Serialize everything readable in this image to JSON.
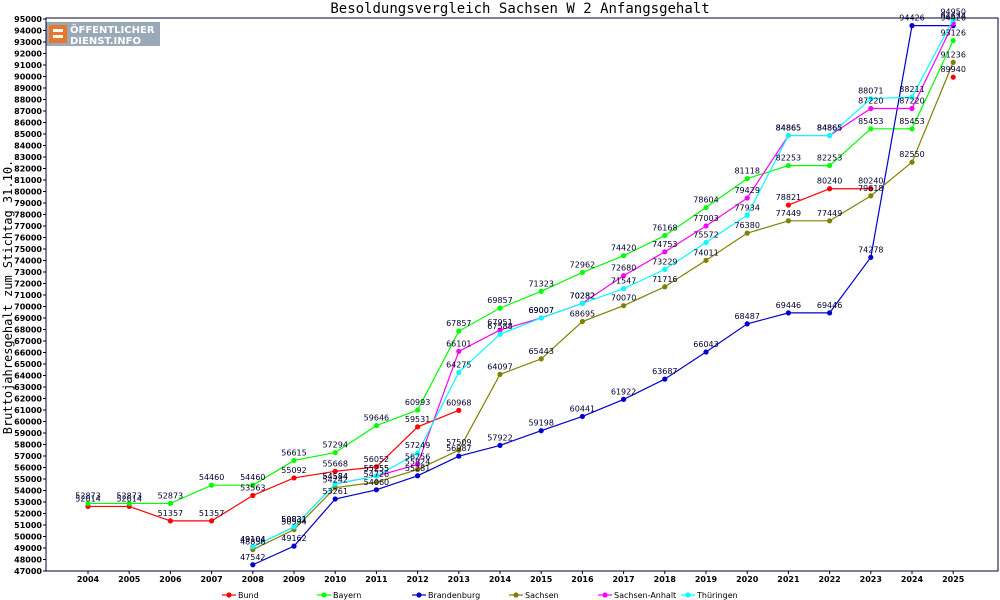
{
  "chart_data": {
    "type": "line",
    "title": "Besoldungsvergleich Sachsen W 2 Anfangsgehalt",
    "ylabel": "Bruttojahresgehalt zum Stichtag 31.10.",
    "xlabel": "",
    "x": [
      2004,
      2005,
      2006,
      2007,
      2008,
      2009,
      2010,
      2011,
      2012,
      2013,
      2014,
      2015,
      2016,
      2017,
      2018,
      2019,
      2020,
      2021,
      2022,
      2023,
      2024,
      2025
    ],
    "ylim": [
      47000,
      95000
    ],
    "ystep": 1000,
    "grid": false,
    "legend_position": "bottom",
    "series": [
      {
        "name": "Bund",
        "color": "#ff0000",
        "values": [
          52614,
          52614,
          51357,
          51357,
          53563,
          55092,
          55668,
          56052,
          59531,
          60968,
          null,
          null,
          null,
          null,
          null,
          null,
          null,
          78821,
          80240,
          80240,
          null,
          89940
        ]
      },
      {
        "name": "Bayern",
        "color": "#00ff00",
        "values": [
          52873,
          52873,
          52873,
          54460,
          54460,
          56615,
          57294,
          59646,
          60993,
          67857,
          69857,
          71323,
          72962,
          74420,
          76168,
          78604,
          81118,
          82253,
          82253,
          85453,
          85453,
          93126
        ]
      },
      {
        "name": "Brandenburg",
        "color": "#0000cc",
        "values": [
          null,
          null,
          null,
          null,
          47542,
          49162,
          53261,
          54060,
          55281,
          56987,
          57922,
          59198,
          60441,
          61922,
          63687,
          66043,
          68487,
          69446,
          69446,
          74278,
          94426,
          94426
        ]
      },
      {
        "name": "Sachsen",
        "color": "#808000",
        "values": [
          null,
          null,
          null,
          null,
          48856,
          50594,
          54242,
          54726,
          55824,
          57509,
          64097,
          65443,
          68695,
          70070,
          71716,
          74011,
          76380,
          77449,
          77449,
          79618,
          82550,
          91236
        ]
      },
      {
        "name": "Sachsen-Anhalt",
        "color": "#ff00ff",
        "values": [
          null,
          null,
          null,
          null,
          49104,
          50831,
          54584,
          55255,
          56256,
          66101,
          67951,
          69007,
          70282,
          72680,
          74753,
          77003,
          79429,
          84865,
          84865,
          87220,
          87220,
          94624
        ]
      },
      {
        "name": "Thüringen",
        "color": "#00ffff",
        "values": [
          null,
          null,
          null,
          null,
          49104,
          50831,
          54584,
          55255,
          57249,
          64275,
          67588,
          69007,
          70282,
          71547,
          73229,
          75572,
          77934,
          84865,
          84865,
          88071,
          88211,
          94950
        ]
      }
    ]
  },
  "logo": {
    "line1": "ÖFFENTLICHER",
    "line2": "DIENST.INFO"
  }
}
